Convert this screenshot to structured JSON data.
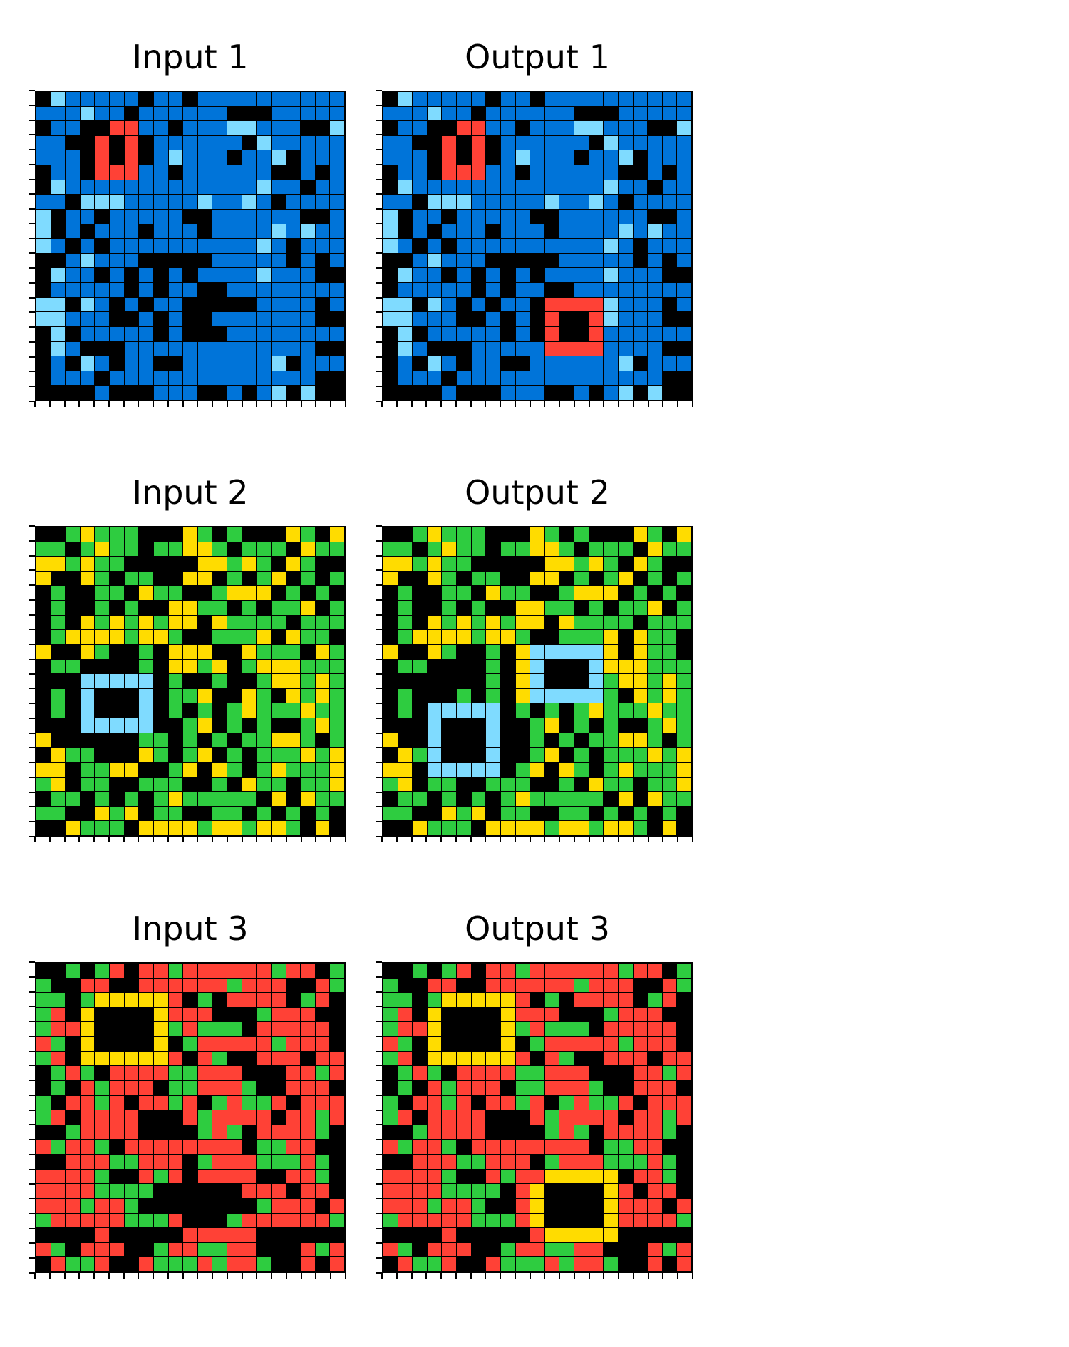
{
  "palette": {
    "0": "#000000",
    "1": "#0074D9",
    "2": "#FF4136",
    "3": "#2ECC40",
    "4": "#FFDC00",
    "8": "#7FDBFF"
  },
  "panels": [
    {
      "title": "Input 1",
      "grid": [
        "081111101101111111111",
        "111811011111100011111",
        "011002211011188111008",
        "110020201111110811111",
        "111020201811101180111",
        "011022211011111100101",
        "081111111111111811011",
        "110888111118118101111",
        "801101111100111111001",
        "801011101110111181811",
        "810101111111111810111",
        "001811100000111110101",
        "081101010101111811100",
        "011111010110011111111",
        "880810101100000111101",
        "881110010100111111100",
        "080111110100011111111",
        "081000111111111111100",
        "010810110011111180111",
        "011101111111111111100",
        "000010001110010180800"
      ]
    },
    {
      "title": "Output 1",
      "grid": [
        "081111101101111111111",
        "111811011111100011111",
        "011002211011188111008",
        "110020201111110811111",
        "111020201811101180111",
        "011022211011111100101",
        "081111111111111811011",
        "110888111118118101111",
        "801101111100111111001",
        "801011101110111181811",
        "810101111111111810111",
        "001811100000111110101",
        "081101010101111811100",
        "011111010110011111111",
        "880810101102222811101",
        "881110010102002811100",
        "080111110102002111111",
        "081000111112222111100",
        "010810110011111180111",
        "011101111111111111100",
        "000010001110010180800"
      ]
    },
    {
      "title": "Input 2",
      "grid": [
        "003433300043030004304",
        "330343303344303330433",
        "443433000004434304300",
        "400430330044030340303",
        "030033043300344403030",
        "030030300443303033403",
        "030434343440433330333",
        "034444344300333404330",
        "400430030444004333043",
        "033000030443403444333",
        "000888880300300344343",
        "030800080334004304343",
        "030800080303034333433",
        "000888880034030300343",
        "400000033030303344303",
        "043300043034030333434",
        "440334400340430343334",
        "340330033300304330334",
        "033030303433333040433",
        "330043403300330303030",
        "004333044443443443040"
      ]
    },
    {
      "title": "Output 2",
      "grid": [
        "003433300043030004304",
        "330343303344303330433",
        "443433000004434304300",
        "400430330044030340303",
        "030033043300344403030",
        "030030300443303033403",
        "030434343440433330333",
        "034444344300333404330",
        "400430030488888404330",
        "033000030480008444333",
        "000000030480008344343",
        "030003030488888304343",
        "030888880303034333433",
        "000800080034030300343",
        "400800080030303344303",
        "043800080034030333434",
        "440888880340430343334",
        "340330033300304330334",
        "033030303433333040433",
        "330043403300330303030",
        "004333044443443443040"
      ]
    },
    {
      "title": "Input 3",
      "grid": [
        "003032022322222232203",
        "300220022222232220023",
        "330344444203022220320",
        "320400004222000322200",
        "322400004323330222220",
        "230400004032222232220",
        "320444444202300222022",
        "032302222332220002232",
        "030232220332223002220",
        "302232022320323320222",
        "320222200023222202232",
        "003222200003230222230",
        "232230222222220332200",
        "002223322203222333230",
        "222230023202222002230",
        "222233330000002220220",
        "222322300000000322202",
        "322222333200032222223",
        "000020000022222000000",
        "230222003223322000232",
        "023320023332322300202"
      ]
    },
    {
      "title": "Output 3",
      "grid": [
        "003032022322222232203",
        "300220022222232220023",
        "330344444203022220320",
        "320400004222000322200",
        "322400004323330222220",
        "230400004032222232220",
        "320444444202300222022",
        "032302222332220002232",
        "030232220332223002220",
        "302232022320323320222",
        "320222200023222202232",
        "003222200003230222230",
        "232230222222220332200",
        "002223322203222333230",
        "222230023224444402230",
        "222233330240000420220",
        "222322300240000422202",
        "322222333240000422223",
        "000020000024444400000",
        "230222003223322000232",
        "023320023332322300202"
      ]
    }
  ]
}
